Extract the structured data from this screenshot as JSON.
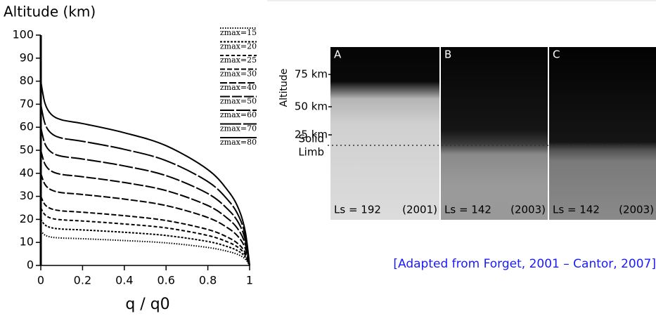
{
  "chart_data": {
    "type": "line",
    "ylabel": "Altitude (km)",
    "xlabel": "q / q0",
    "xlim": [
      0,
      1
    ],
    "xticks": [
      0,
      0.2,
      0.4,
      0.6,
      0.8,
      1
    ],
    "ylim": [
      0,
      100
    ],
    "yticks": [
      0,
      10,
      20,
      30,
      40,
      50,
      60,
      70,
      80,
      90,
      100
    ],
    "x": [
      0,
      0.02,
      0.05,
      0.1,
      0.2,
      0.4,
      0.6,
      0.8,
      0.9,
      0.95,
      0.98,
      1
    ],
    "series": [
      {
        "name": "zmax=15",
        "color": "#000000",
        "dash": "1.5,2",
        "values": [
          15,
          13.2,
          12.3,
          11.9,
          11.6,
          10.8,
          9.8,
          7.8,
          6,
          4.5,
          2.7,
          0
        ]
      },
      {
        "name": "zmax=20",
        "color": "#000000",
        "dash": "3,2",
        "values": [
          20,
          17.6,
          16.4,
          15.8,
          15.4,
          14.4,
          13,
          10.4,
          8,
          6,
          3.6,
          0
        ]
      },
      {
        "name": "zmax=25",
        "color": "#000000",
        "dash": "5,3",
        "values": [
          25,
          22,
          20.5,
          19.8,
          19.3,
          18,
          16.3,
          13,
          10,
          7.5,
          4.5,
          0
        ]
      },
      {
        "name": "zmax=30",
        "color": "#000000",
        "dash": "7,3",
        "values": [
          30,
          26.4,
          24.6,
          23.7,
          23.1,
          21.6,
          19.5,
          15.6,
          12,
          9,
          5.4,
          0
        ]
      },
      {
        "name": "zmax=40",
        "color": "#000000",
        "dash": "10,3",
        "values": [
          40,
          35.2,
          32.8,
          31.6,
          30.8,
          28.8,
          26,
          20.8,
          16,
          12,
          7.2,
          0
        ]
      },
      {
        "name": "zmax=50",
        "color": "#000000",
        "dash": "14,3",
        "values": [
          50,
          44,
          41,
          39.5,
          38.5,
          36,
          32.5,
          26,
          20,
          15,
          9,
          0
        ]
      },
      {
        "name": "zmax=60",
        "color": "#000000",
        "dash": "20,3",
        "values": [
          60,
          52.8,
          49.2,
          47.4,
          46.2,
          43.2,
          39,
          31.2,
          24,
          18,
          10.8,
          0
        ]
      },
      {
        "name": "zmax=70",
        "color": "#000000",
        "dash": "30,3",
        "values": [
          70,
          61.6,
          57.4,
          55.3,
          53.9,
          50.4,
          45.5,
          36.4,
          28,
          21,
          12.6,
          0
        ]
      },
      {
        "name": "zmax=80",
        "color": "#000000",
        "dash": "none",
        "values": [
          80,
          70.4,
          65.6,
          63.2,
          61.6,
          57.6,
          52,
          41.6,
          32,
          24,
          14.4,
          0
        ]
      }
    ]
  },
  "figure": {
    "y_label": "Altitude",
    "altitude_labels": [
      "75 km",
      "50 km",
      "25 km"
    ],
    "limb_label": [
      "Solid",
      "Limb"
    ],
    "panels": [
      {
        "letter": "A",
        "ls": "Ls = 192",
        "year": "(2001)"
      },
      {
        "letter": "B",
        "ls": "Ls = 142",
        "year": "(2003)"
      },
      {
        "letter": "C",
        "ls": "Ls = 142",
        "year": "(2003)"
      }
    ]
  },
  "caption": "[Adapted from Forget, 2001 – Cantor, 2007]"
}
